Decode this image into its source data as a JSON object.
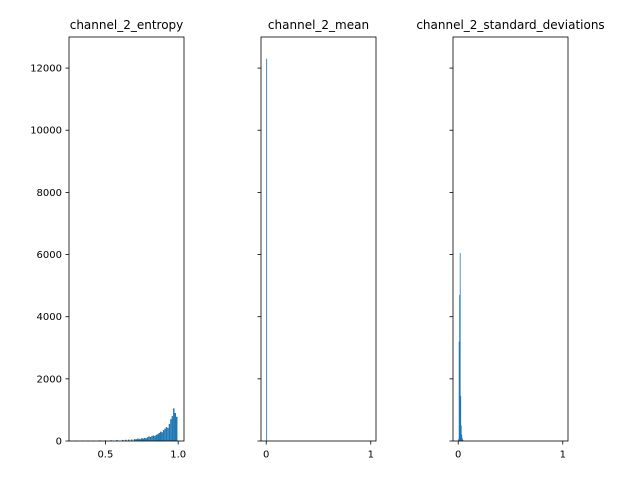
{
  "figure": {
    "bar_color": "#1f77b4",
    "background": "#ffffff"
  },
  "chart_data": [
    {
      "type": "bar",
      "title": "channel_2_entropy",
      "xlabel": "",
      "ylabel": "",
      "xlim": [
        0.25,
        1.04
      ],
      "ylim": [
        0,
        13000
      ],
      "xticks": [
        0.5,
        1.0
      ],
      "xtick_labels": [
        "0.5",
        "1.0"
      ],
      "yticks": [
        0,
        2000,
        4000,
        6000,
        8000,
        10000,
        12000
      ],
      "ytick_labels": [
        "0",
        "2000",
        "4000",
        "6000",
        "8000",
        "10000",
        "12000"
      ],
      "bin_width": 0.01,
      "x": [
        0.3,
        0.34,
        0.38,
        0.42,
        0.46,
        0.5,
        0.54,
        0.58,
        0.62,
        0.64,
        0.66,
        0.68,
        0.7,
        0.71,
        0.72,
        0.73,
        0.74,
        0.75,
        0.76,
        0.77,
        0.78,
        0.79,
        0.8,
        0.81,
        0.82,
        0.83,
        0.84,
        0.85,
        0.86,
        0.87,
        0.88,
        0.89,
        0.9,
        0.91,
        0.92,
        0.93,
        0.94,
        0.95,
        0.96,
        0.97,
        0.98,
        0.99
      ],
      "values": [
        10,
        15,
        10,
        15,
        20,
        20,
        25,
        30,
        35,
        40,
        45,
        50,
        60,
        55,
        70,
        75,
        60,
        90,
        80,
        100,
        90,
        120,
        150,
        130,
        160,
        180,
        160,
        200,
        220,
        260,
        300,
        280,
        350,
        400,
        450,
        420,
        550,
        700,
        800,
        1050,
        900,
        780
      ]
    },
    {
      "type": "bar",
      "title": "channel_2_mean",
      "xlabel": "",
      "ylabel": "",
      "xlim": [
        -0.05,
        1.05
      ],
      "ylim": [
        0,
        13000
      ],
      "xticks": [
        0,
        1
      ],
      "xtick_labels": [
        "0",
        "1"
      ],
      "yticks": [
        0,
        2000,
        4000,
        6000,
        8000,
        10000,
        12000
      ],
      "ytick_labels": [
        "",
        "",
        "",
        "",
        "",
        "",
        ""
      ],
      "bin_width": 0.008,
      "x": [
        0.004
      ],
      "values": [
        12300
      ]
    },
    {
      "type": "bar",
      "title": "channel_2_standard_deviations",
      "xlabel": "",
      "ylabel": "",
      "xlim": [
        -0.05,
        1.05
      ],
      "ylim": [
        0,
        13000
      ],
      "xticks": [
        0,
        1
      ],
      "xtick_labels": [
        "0",
        "1"
      ],
      "yticks": [
        0,
        2000,
        4000,
        6000,
        8000,
        10000,
        12000
      ],
      "ytick_labels": [
        "",
        "",
        "",
        "",
        "",
        "",
        ""
      ],
      "bin_width": 0.005,
      "x": [
        0.0025,
        0.0075,
        0.0125,
        0.0175,
        0.0225,
        0.0275,
        0.0325,
        0.0375,
        0.0425,
        0.0475
      ],
      "values": [
        60,
        3200,
        4700,
        6050,
        1450,
        500,
        200,
        90,
        40,
        15
      ]
    }
  ]
}
